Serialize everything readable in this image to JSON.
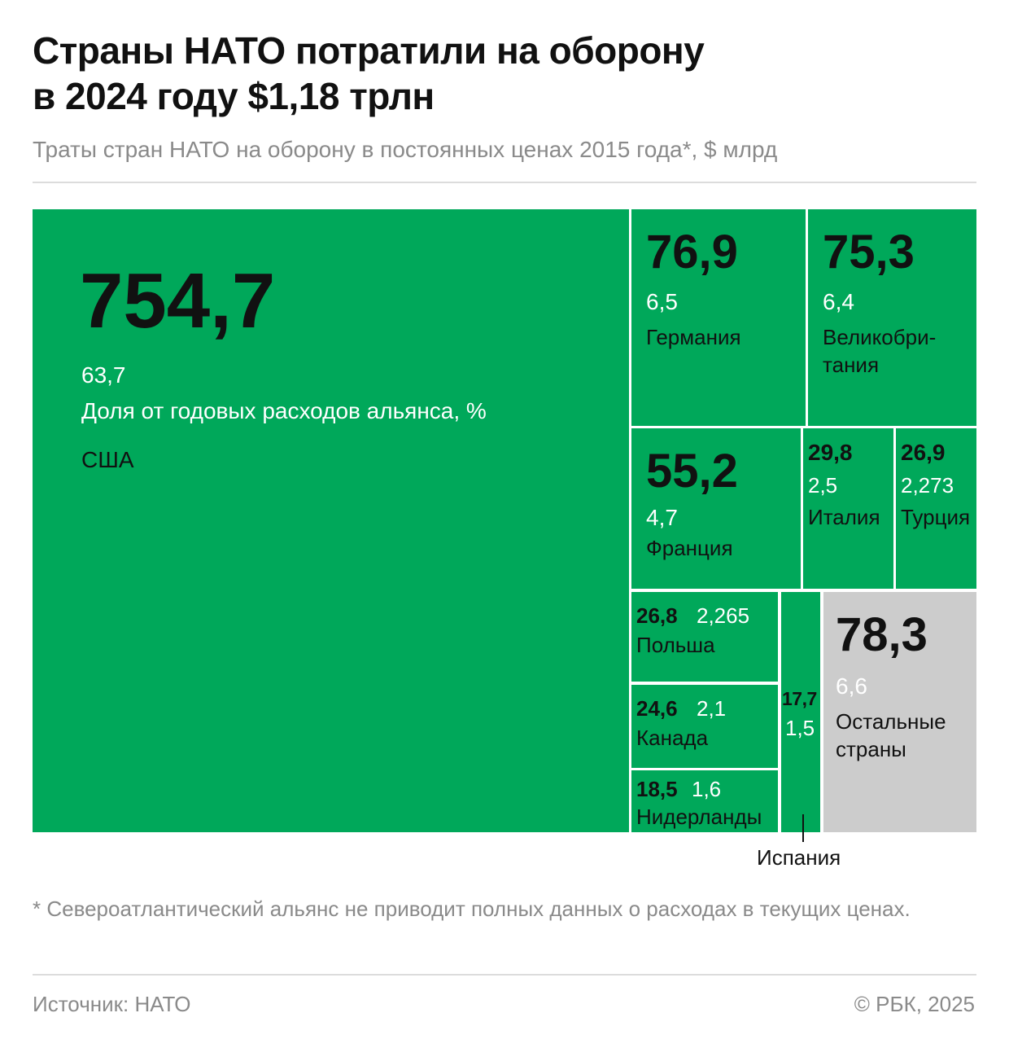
{
  "title_line1": "Страны НАТО потратили на оборону",
  "title_line2": "в 2024 году $1,18 трлн",
  "subtitle": "Траты стран НАТО на оборону в постоянных ценах 2015 года*, $ млрд",
  "share_label": "Доля от годовых расходов альянса, %",
  "footnote": "* Североатлантический альянс не приводит полных данных о расходах в текущих ценах.",
  "source": "Источник: НАТО",
  "copyright": "© РБК, 2025",
  "colors": {
    "nato_tile": "#00a85a",
    "other_tile": "#cccccc",
    "text": "#111111",
    "muted": "#8a8a8a"
  },
  "chart_data": {
    "type": "treemap",
    "title": "Страны НАТО потратили на оборону в 2024 году $1,18 трлн",
    "subtitle": "Траты стран НАТО на оборону в постоянных ценах 2015 года*, $ млрд",
    "items": [
      {
        "name": "США",
        "value": 754.7,
        "value_label": "754,7",
        "share_label": "63,7"
      },
      {
        "name": "Германия",
        "value": 76.9,
        "value_label": "76,9",
        "share_label": "6,5"
      },
      {
        "name": "Великобри-\nтания",
        "value": 75.3,
        "value_label": "75,3",
        "share_label": "6,4"
      },
      {
        "name": "Франция",
        "value": 55.2,
        "value_label": "55,2",
        "share_label": "4,7"
      },
      {
        "name": "Италия",
        "value": 29.8,
        "value_label": "29,8",
        "share_label": "2,5"
      },
      {
        "name": "Турция",
        "value": 26.9,
        "value_label": "26,9",
        "share_label": "2,273"
      },
      {
        "name": "Польша",
        "value": 26.8,
        "value_label": "26,8",
        "share_label": "2,265"
      },
      {
        "name": "Канада",
        "value": 24.6,
        "value_label": "24,6",
        "share_label": "2,1"
      },
      {
        "name": "Нидерланды",
        "value": 18.5,
        "value_label": "18,5",
        "share_label": "1,6"
      },
      {
        "name": "Испания",
        "value": 17.7,
        "value_label": "17,7",
        "share_label": "1,5"
      },
      {
        "name": "Остальные\nстраны",
        "value": 78.3,
        "value_label": "78,3",
        "share_label": "6,6"
      }
    ]
  }
}
